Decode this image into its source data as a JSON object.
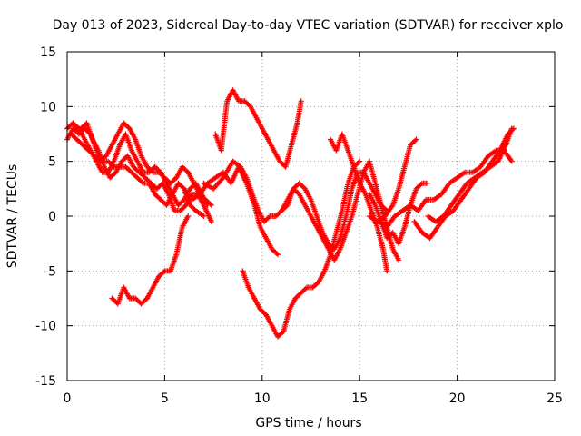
{
  "chart_data": {
    "type": "scatter",
    "title": "Day 013 of 2023, Sidereal Day-to-day VTEC variation (SDTVAR) for receiver xplo",
    "xlabel": "GPS time / hours",
    "ylabel": "SDTVAR / TECUs",
    "xlim": [
      0,
      25
    ],
    "ylim": [
      -15,
      15
    ],
    "x_ticks": [
      0,
      5,
      10,
      15,
      20,
      25
    ],
    "y_ticks": [
      -15,
      -10,
      -5,
      0,
      5,
      10,
      15
    ],
    "grid": true,
    "legend": "none",
    "marker": "plus",
    "color": "#ff0000",
    "series": [
      {
        "points": [
          [
            0,
            7
          ],
          [
            0.3,
            8
          ],
          [
            0.6,
            7.5
          ],
          [
            0.9,
            8
          ],
          [
            1.2,
            7.5
          ],
          [
            1.5,
            6
          ],
          [
            1.8,
            5
          ],
          [
            2.1,
            5
          ],
          [
            2.4,
            4.5
          ],
          [
            2.7,
            4.5
          ],
          [
            3.0,
            4.5
          ],
          [
            3.3,
            4
          ],
          [
            3.6,
            3.5
          ],
          [
            3.9,
            3
          ],
          [
            4.2,
            3
          ],
          [
            4.5,
            2
          ],
          [
            4.8,
            1.5
          ],
          [
            5.1,
            1
          ],
          [
            5.4,
            2
          ],
          [
            5.7,
            3
          ],
          [
            6.0,
            2.5
          ],
          [
            6.3,
            1
          ],
          [
            6.6,
            0.5
          ],
          [
            7.0,
            0
          ]
        ]
      },
      {
        "points": [
          [
            0,
            8
          ],
          [
            0.3,
            8.5
          ],
          [
            0.6,
            8
          ],
          [
            0.9,
            7
          ],
          [
            1.2,
            6
          ],
          [
            1.5,
            5
          ],
          [
            1.8,
            4
          ],
          [
            2.1,
            4
          ],
          [
            2.4,
            5
          ],
          [
            2.7,
            6.5
          ],
          [
            3.0,
            7.5
          ],
          [
            3.3,
            6
          ],
          [
            3.6,
            5
          ],
          [
            3.9,
            4
          ],
          [
            4.2,
            4
          ],
          [
            4.5,
            4.5
          ],
          [
            4.8,
            4
          ],
          [
            5.1,
            3
          ],
          [
            5.4,
            2
          ],
          [
            5.7,
            1
          ],
          [
            6.0,
            1.5
          ],
          [
            6.3,
            2.5
          ],
          [
            6.6,
            3
          ],
          [
            6.9,
            2
          ],
          [
            7.2,
            1
          ]
        ]
      },
      {
        "points": [
          [
            0.2,
            7.5
          ],
          [
            0.5,
            7
          ],
          [
            0.8,
            6.5
          ],
          [
            1.1,
            6
          ],
          [
            1.4,
            5.5
          ],
          [
            1.7,
            5
          ],
          [
            2.0,
            5.5
          ],
          [
            2.3,
            6.5
          ],
          [
            2.6,
            7.5
          ],
          [
            2.9,
            8.5
          ],
          [
            3.2,
            8
          ],
          [
            3.5,
            7
          ],
          [
            3.8,
            5.5
          ],
          [
            4.1,
            4.5
          ],
          [
            4.4,
            4
          ],
          [
            4.7,
            4
          ],
          [
            5.0,
            3.5
          ],
          [
            5.3,
            3
          ],
          [
            5.6,
            3.5
          ],
          [
            5.9,
            4.5
          ],
          [
            6.2,
            4
          ],
          [
            6.5,
            3
          ],
          [
            6.8,
            2
          ],
          [
            7.1,
            1.5
          ],
          [
            7.4,
            1
          ]
        ]
      },
      {
        "points": [
          [
            0.4,
            8
          ],
          [
            0.7,
            8
          ],
          [
            1.0,
            8.5
          ],
          [
            1.3,
            7
          ],
          [
            1.6,
            6
          ],
          [
            1.9,
            4.5
          ],
          [
            2.2,
            3.5
          ],
          [
            2.5,
            4
          ],
          [
            2.8,
            5
          ],
          [
            3.1,
            5.5
          ],
          [
            3.4,
            4.5
          ],
          [
            3.7,
            4
          ],
          [
            4.0,
            3.5
          ],
          [
            4.3,
            3
          ],
          [
            4.6,
            2.5
          ],
          [
            4.9,
            3
          ],
          [
            5.2,
            2
          ],
          [
            5.5,
            0.5
          ],
          [
            5.8,
            0.5
          ],
          [
            6.1,
            1
          ],
          [
            6.4,
            2
          ],
          [
            6.7,
            2
          ],
          [
            7.0,
            1
          ],
          [
            7.4,
            -0.5
          ]
        ]
      },
      {
        "points": [
          [
            7.6,
            7.5
          ],
          [
            7.9,
            6
          ],
          [
            8.2,
            10.5
          ],
          [
            8.5,
            11.5
          ],
          [
            8.8,
            10.5
          ],
          [
            9.1,
            10.5
          ],
          [
            9.4,
            10
          ],
          [
            9.7,
            9
          ],
          [
            10.0,
            8
          ],
          [
            10.3,
            7
          ],
          [
            10.6,
            6
          ],
          [
            10.9,
            5
          ],
          [
            11.2,
            4.5
          ],
          [
            11.5,
            6.5
          ],
          [
            11.8,
            8.5
          ],
          [
            12.0,
            10.5
          ]
        ]
      },
      {
        "points": [
          [
            2.3,
            -7.5
          ],
          [
            2.6,
            -8
          ],
          [
            2.9,
            -6.5
          ],
          [
            3.2,
            -7.5
          ],
          [
            3.5,
            -7.5
          ],
          [
            3.8,
            -8
          ],
          [
            4.1,
            -7.5
          ],
          [
            4.4,
            -6.5
          ],
          [
            4.7,
            -5.5
          ],
          [
            5.0,
            -5
          ],
          [
            5.3,
            -5
          ],
          [
            5.6,
            -3.5
          ],
          [
            5.9,
            -1
          ],
          [
            6.2,
            0
          ]
        ]
      },
      {
        "points": [
          [
            6.0,
            2.5
          ],
          [
            6.4,
            1.5
          ],
          [
            6.8,
            2
          ],
          [
            7.2,
            3
          ],
          [
            7.6,
            3.5
          ],
          [
            8.0,
            4
          ],
          [
            8.4,
            3
          ],
          [
            8.8,
            4.5
          ],
          [
            9.2,
            3
          ],
          [
            9.6,
            1
          ],
          [
            9.9,
            -1
          ],
          [
            10.2,
            -2
          ],
          [
            10.5,
            -3
          ],
          [
            10.8,
            -3.5
          ]
        ]
      },
      {
        "points": [
          [
            7.0,
            3
          ],
          [
            7.5,
            2.5
          ],
          [
            8.0,
            3.5
          ],
          [
            8.5,
            5
          ],
          [
            8.9,
            4.5
          ],
          [
            9.2,
            3.5
          ],
          [
            9.5,
            2
          ],
          [
            9.8,
            0.5
          ],
          [
            10.1,
            -0.5
          ],
          [
            10.4,
            0
          ],
          [
            10.7,
            0
          ],
          [
            11.0,
            0.5
          ],
          [
            11.3,
            1.5
          ],
          [
            11.6,
            2.5
          ],
          [
            11.9,
            3
          ],
          [
            12.2,
            2.5
          ],
          [
            12.5,
            1.5
          ],
          [
            12.8,
            0
          ],
          [
            13.1,
            -1.5
          ],
          [
            13.4,
            -2.5
          ],
          [
            13.7,
            -3
          ],
          [
            14.0,
            -2
          ],
          [
            14.3,
            0
          ],
          [
            14.6,
            2.5
          ],
          [
            14.9,
            4
          ],
          [
            15.2,
            4
          ],
          [
            15.5,
            3
          ],
          [
            15.8,
            2
          ],
          [
            16.1,
            1
          ],
          [
            16.4,
            0.5
          ]
        ]
      },
      {
        "points": [
          [
            9.0,
            -5
          ],
          [
            9.3,
            -6.5
          ],
          [
            9.6,
            -7.5
          ],
          [
            9.9,
            -8.5
          ],
          [
            10.2,
            -9
          ],
          [
            10.5,
            -10
          ],
          [
            10.8,
            -11
          ],
          [
            11.1,
            -10.5
          ],
          [
            11.4,
            -8.5
          ],
          [
            11.7,
            -7.5
          ],
          [
            12.0,
            -7
          ],
          [
            12.3,
            -6.5
          ],
          [
            12.6,
            -6.5
          ],
          [
            12.9,
            -6
          ],
          [
            13.2,
            -5
          ],
          [
            13.5,
            -3.5
          ],
          [
            13.8,
            -1.5
          ],
          [
            14.1,
            0.5
          ],
          [
            14.4,
            3
          ],
          [
            14.7,
            4.5
          ],
          [
            15.0,
            5
          ]
        ]
      },
      {
        "points": [
          [
            11.0,
            0.5
          ],
          [
            11.3,
            1
          ],
          [
            11.6,
            2.5
          ],
          [
            11.9,
            2
          ],
          [
            12.2,
            1
          ],
          [
            12.5,
            0
          ],
          [
            12.8,
            -1
          ],
          [
            13.1,
            -2
          ],
          [
            13.4,
            -3
          ],
          [
            13.7,
            -4
          ],
          [
            14.0,
            -3
          ],
          [
            14.3,
            -1.5
          ],
          [
            14.6,
            0
          ],
          [
            14.9,
            2
          ],
          [
            15.2,
            4
          ],
          [
            15.5,
            5
          ],
          [
            15.8,
            3
          ],
          [
            16.1,
            1
          ],
          [
            16.4,
            -1
          ],
          [
            16.7,
            -3
          ],
          [
            17.0,
            -4
          ]
        ]
      },
      {
        "points": [
          [
            13.5,
            7
          ],
          [
            13.8,
            6
          ],
          [
            14.1,
            7.5
          ],
          [
            14.4,
            6
          ],
          [
            14.7,
            4.5
          ],
          [
            15.0,
            3
          ],
          [
            15.3,
            2
          ],
          [
            15.6,
            0.5
          ],
          [
            15.9,
            -1
          ],
          [
            16.2,
            -3
          ],
          [
            16.4,
            -5
          ]
        ]
      },
      {
        "points": [
          [
            15.5,
            2
          ],
          [
            15.8,
            1
          ],
          [
            16.1,
            -0.5
          ],
          [
            16.4,
            -2
          ],
          [
            16.7,
            -1.5
          ],
          [
            17.0,
            -2.5
          ],
          [
            17.3,
            -1
          ],
          [
            17.6,
            1
          ],
          [
            17.9,
            2.5
          ],
          [
            18.2,
            3
          ],
          [
            18.5,
            3
          ]
        ]
      },
      {
        "points": [
          [
            15.5,
            0
          ],
          [
            15.9,
            -0.5
          ],
          [
            16.3,
            0
          ],
          [
            16.7,
            1
          ],
          [
            17.0,
            2.5
          ],
          [
            17.3,
            4.5
          ],
          [
            17.6,
            6.5
          ],
          [
            17.9,
            7
          ]
        ]
      },
      {
        "points": [
          [
            16.0,
            -0.5
          ],
          [
            16.4,
            -1
          ],
          [
            16.8,
            0
          ],
          [
            17.2,
            0.5
          ],
          [
            17.6,
            1
          ],
          [
            18.0,
            0.5
          ],
          [
            18.4,
            1.5
          ],
          [
            18.8,
            1.5
          ],
          [
            19.2,
            2
          ],
          [
            19.6,
            3
          ],
          [
            20.0,
            3.5
          ],
          [
            20.4,
            4
          ],
          [
            20.8,
            4
          ],
          [
            21.2,
            4.5
          ],
          [
            21.6,
            5.5
          ],
          [
            22.0,
            6
          ],
          [
            22.4,
            6
          ],
          [
            22.8,
            5
          ]
        ]
      },
      {
        "points": [
          [
            17.8,
            -0.5
          ],
          [
            18.2,
            -1.5
          ],
          [
            18.6,
            -2
          ],
          [
            19.0,
            -1
          ],
          [
            19.4,
            0
          ],
          [
            19.8,
            0.5
          ],
          [
            20.2,
            1.5
          ],
          [
            20.6,
            2.5
          ],
          [
            21.0,
            3.5
          ],
          [
            21.4,
            4
          ],
          [
            21.8,
            5
          ],
          [
            22.2,
            6
          ],
          [
            22.6,
            7.5
          ],
          [
            22.9,
            8
          ]
        ]
      },
      {
        "points": [
          [
            18.5,
            0
          ],
          [
            18.9,
            -0.5
          ],
          [
            19.3,
            0
          ],
          [
            19.7,
            1
          ],
          [
            20.1,
            2
          ],
          [
            20.5,
            3
          ],
          [
            20.9,
            3.5
          ],
          [
            21.3,
            4
          ],
          [
            21.7,
            4.5
          ],
          [
            22.1,
            5
          ],
          [
            22.5,
            6.5
          ],
          [
            22.8,
            8
          ]
        ]
      }
    ]
  }
}
